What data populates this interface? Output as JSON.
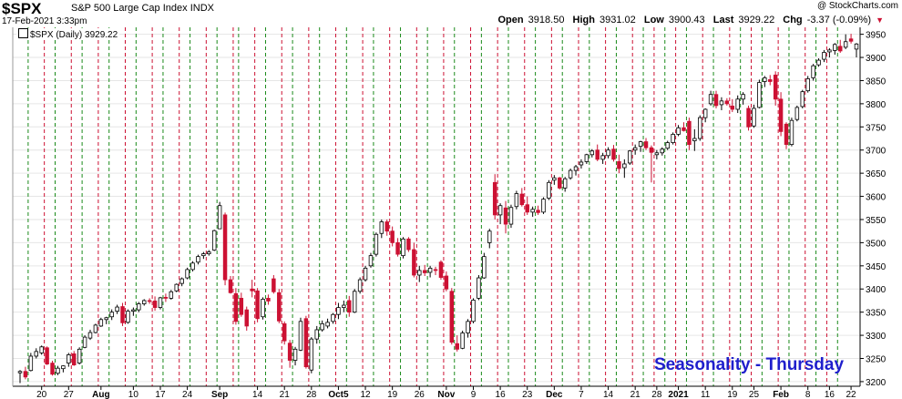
{
  "header": {
    "symbol": "$SPX",
    "name": "S&P 500 Large Cap Index",
    "exchange": "INDX",
    "datetime": "17-Feb-2021 3:33pm",
    "watermark": "@ StockCharts.com",
    "open_label": "Open",
    "open": "3918.50",
    "high_label": "High",
    "high": "3931.02",
    "low_label": "Low",
    "low": "3900.43",
    "last_label": "Last",
    "last": "3929.22",
    "chg_label": "Chg",
    "chg": "-3.37 (-0.09%)"
  },
  "legend": {
    "label": "$SPX (Daily) 3929.22"
  },
  "annotation": {
    "text": "Seasonality - Thursday"
  },
  "colors": {
    "up_fill": "#ffffff",
    "up_stroke": "#000000",
    "down": "#cc1133",
    "green_line": "#1a8a1a",
    "red_line": "#cc1133",
    "grid": "#e6e6e6",
    "text_blue": "#1f1fcc"
  },
  "chart_data": {
    "type": "candlestick",
    "ylim": [
      3190,
      3965
    ],
    "y_ticks": [
      3200,
      3250,
      3300,
      3350,
      3400,
      3450,
      3500,
      3550,
      3600,
      3650,
      3700,
      3750,
      3800,
      3850,
      3900,
      3950
    ],
    "x_ticks": [
      {
        "label": "20",
        "i": 4
      },
      {
        "label": "27",
        "i": 9
      },
      {
        "label": "Aug",
        "i": 15
      },
      {
        "label": "10",
        "i": 21
      },
      {
        "label": "17",
        "i": 26
      },
      {
        "label": "24",
        "i": 31
      },
      {
        "label": "Sep",
        "i": 37
      },
      {
        "label": "14",
        "i": 44
      },
      {
        "label": "21",
        "i": 49
      },
      {
        "label": "28",
        "i": 54
      },
      {
        "label": "Oct5",
        "i": 59
      },
      {
        "label": "12",
        "i": 64
      },
      {
        "label": "19",
        "i": 69
      },
      {
        "label": "26",
        "i": 74
      },
      {
        "label": "Nov",
        "i": 79
      },
      {
        "label": "9",
        "i": 84
      },
      {
        "label": "16",
        "i": 89
      },
      {
        "label": "23",
        "i": 94
      },
      {
        "label": "Dec",
        "i": 99
      },
      {
        "label": "7",
        "i": 104
      },
      {
        "label": "14",
        "i": 109
      },
      {
        "label": "21",
        "i": 114
      },
      {
        "label": "28",
        "i": 118
      },
      {
        "label": "2021",
        "i": 122
      },
      {
        "label": "11",
        "i": 127
      },
      {
        "label": "19",
        "i": 132
      },
      {
        "label": "25",
        "i": 136
      },
      {
        "label": "Feb",
        "i": 141
      },
      {
        "label": "8",
        "i": 146
      },
      {
        "label": "16",
        "i": 150
      },
      {
        "label": "22",
        "i": 154
      }
    ],
    "red_verticals": [
      4,
      9,
      14,
      19,
      24,
      29,
      34,
      39,
      43,
      48,
      53,
      58,
      63,
      68,
      73,
      78,
      83,
      88,
      93,
      98,
      103,
      108,
      113,
      117,
      121,
      126,
      131,
      135,
      140,
      145,
      149
    ],
    "green_verticals": [
      1,
      6,
      11,
      16,
      21,
      26,
      31,
      36,
      40,
      45,
      50,
      55,
      60,
      65,
      70,
      75,
      80,
      85,
      90,
      95,
      100,
      105,
      110,
      115,
      119,
      123,
      128,
      133,
      137,
      142,
      147,
      151
    ],
    "candles": [
      [
        3219,
        3225,
        3197,
        3222
      ],
      [
        3222,
        3232,
        3205,
        3210
      ],
      [
        3224,
        3262,
        3222,
        3255
      ],
      [
        3255,
        3272,
        3250,
        3265
      ],
      [
        3262,
        3278,
        3258,
        3275
      ],
      [
        3273,
        3276,
        3236,
        3238
      ],
      [
        3240,
        3245,
        3213,
        3216
      ],
      [
        3218,
        3234,
        3214,
        3229
      ],
      [
        3228,
        3235,
        3220,
        3234
      ],
      [
        3240,
        3262,
        3232,
        3258
      ],
      [
        3260,
        3266,
        3234,
        3236
      ],
      [
        3240,
        3274,
        3237,
        3270
      ],
      [
        3274,
        3300,
        3272,
        3296
      ],
      [
        3294,
        3312,
        3290,
        3306
      ],
      [
        3306,
        3325,
        3304,
        3322
      ],
      [
        3320,
        3338,
        3318,
        3334
      ],
      [
        3334,
        3340,
        3324,
        3338
      ],
      [
        3340,
        3356,
        3333,
        3350
      ],
      [
        3352,
        3366,
        3346,
        3361
      ],
      [
        3362,
        3370,
        3320,
        3327
      ],
      [
        3328,
        3356,
        3325,
        3352
      ],
      [
        3352,
        3360,
        3342,
        3355
      ],
      [
        3355,
        3372,
        3350,
        3368
      ],
      [
        3368,
        3378,
        3364,
        3375
      ],
      [
        3375,
        3380,
        3368,
        3374
      ],
      [
        3374,
        3384,
        3353,
        3360
      ],
      [
        3360,
        3383,
        3356,
        3381
      ],
      [
        3382,
        3390,
        3372,
        3380
      ],
      [
        3380,
        3398,
        3377,
        3394
      ],
      [
        3396,
        3412,
        3393,
        3410
      ],
      [
        3412,
        3425,
        3406,
        3422
      ],
      [
        3424,
        3446,
        3421,
        3442
      ],
      [
        3442,
        3460,
        3438,
        3456
      ],
      [
        3458,
        3474,
        3453,
        3470
      ],
      [
        3472,
        3480,
        3465,
        3476
      ],
      [
        3476,
        3484,
        3472,
        3480
      ],
      [
        3484,
        3528,
        3482,
        3526
      ],
      [
        3530,
        3588,
        3530,
        3580
      ],
      [
        3560,
        3565,
        3408,
        3420
      ],
      [
        3420,
        3428,
        3390,
        3392
      ],
      [
        3390,
        3402,
        3323,
        3330
      ],
      [
        3380,
        3392,
        3340,
        3345
      ],
      [
        3355,
        3362,
        3310,
        3320
      ],
      [
        3400,
        3420,
        3382,
        3396
      ],
      [
        3396,
        3402,
        3328,
        3336
      ],
      [
        3340,
        3382,
        3334,
        3378
      ],
      [
        3380,
        3388,
        3366,
        3374
      ],
      [
        3422,
        3430,
        3390,
        3394
      ],
      [
        3392,
        3400,
        3326,
        3331
      ],
      [
        3325,
        3330,
        3280,
        3288
      ],
      [
        3283,
        3290,
        3230,
        3246
      ],
      [
        3246,
        3275,
        3235,
        3270
      ],
      [
        3268,
        3338,
        3266,
        3330
      ],
      [
        3336,
        3342,
        3228,
        3232
      ],
      [
        3225,
        3296,
        3218,
        3292
      ],
      [
        3292,
        3320,
        3282,
        3312
      ],
      [
        3312,
        3332,
        3308,
        3325
      ],
      [
        3320,
        3336,
        3315,
        3328
      ],
      [
        3330,
        3348,
        3325,
        3345
      ],
      [
        3345,
        3370,
        3335,
        3360
      ],
      [
        3360,
        3375,
        3350,
        3365
      ],
      [
        3375,
        3385,
        3340,
        3350
      ],
      [
        3350,
        3400,
        3348,
        3395
      ],
      [
        3395,
        3425,
        3390,
        3420
      ],
      [
        3420,
        3450,
        3416,
        3445
      ],
      [
        3450,
        3478,
        3446,
        3472
      ],
      [
        3475,
        3522,
        3470,
        3518
      ],
      [
        3520,
        3550,
        3510,
        3545
      ],
      [
        3545,
        3550,
        3515,
        3525
      ],
      [
        3525,
        3535,
        3492,
        3500
      ],
      [
        3500,
        3510,
        3470,
        3475
      ],
      [
        3472,
        3512,
        3466,
        3508
      ],
      [
        3508,
        3512,
        3480,
        3485
      ],
      [
        3485,
        3500,
        3425,
        3430
      ],
      [
        3430,
        3450,
        3415,
        3440
      ],
      [
        3440,
        3452,
        3428,
        3435
      ],
      [
        3436,
        3450,
        3425,
        3445
      ],
      [
        3442,
        3448,
        3430,
        3440
      ],
      [
        3458,
        3462,
        3420,
        3425
      ],
      [
        3428,
        3438,
        3395,
        3400
      ],
      [
        3395,
        3402,
        3280,
        3285
      ],
      [
        3282,
        3300,
        3265,
        3270
      ],
      [
        3272,
        3310,
        3270,
        3305
      ],
      [
        3305,
        3335,
        3295,
        3330
      ],
      [
        3330,
        3380,
        3326,
        3376
      ],
      [
        3380,
        3430,
        3376,
        3424
      ],
      [
        3424,
        3478,
        3422,
        3470
      ],
      [
        3500,
        3530,
        3488,
        3525
      ],
      [
        3630,
        3648,
        3550,
        3560
      ],
      [
        3560,
        3585,
        3540,
        3580
      ],
      [
        3575,
        3590,
        3520,
        3540
      ],
      [
        3540,
        3582,
        3532,
        3576
      ],
      [
        3578,
        3612,
        3572,
        3606
      ],
      [
        3605,
        3618,
        3578,
        3582
      ],
      [
        3582,
        3600,
        3560,
        3566
      ],
      [
        3566,
        3578,
        3556,
        3572
      ],
      [
        3570,
        3580,
        3560,
        3565
      ],
      [
        3566,
        3598,
        3562,
        3594
      ],
      [
        3596,
        3635,
        3592,
        3630
      ],
      [
        3635,
        3646,
        3625,
        3640
      ],
      [
        3640,
        3642,
        3615,
        3618
      ],
      [
        3618,
        3642,
        3610,
        3638
      ],
      [
        3640,
        3660,
        3636,
        3656
      ],
      [
        3656,
        3668,
        3645,
        3664
      ],
      [
        3668,
        3680,
        3660,
        3674
      ],
      [
        3675,
        3692,
        3670,
        3690
      ],
      [
        3690,
        3702,
        3684,
        3698
      ],
      [
        3700,
        3712,
        3676,
        3680
      ],
      [
        3680,
        3694,
        3670,
        3688
      ],
      [
        3688,
        3706,
        3682,
        3700
      ],
      [
        3702,
        3711,
        3675,
        3680
      ],
      [
        3675,
        3690,
        3650,
        3660
      ],
      [
        3662,
        3680,
        3640,
        3670
      ],
      [
        3672,
        3700,
        3668,
        3698
      ],
      [
        3700,
        3712,
        3690,
        3705
      ],
      [
        3708,
        3720,
        3696,
        3718
      ],
      [
        3718,
        3726,
        3700,
        3705
      ],
      [
        3705,
        3710,
        3630,
        3695
      ],
      [
        3690,
        3700,
        3680,
        3694
      ],
      [
        3694,
        3706,
        3688,
        3702
      ],
      [
        3704,
        3720,
        3700,
        3716
      ],
      [
        3716,
        3738,
        3712,
        3734
      ],
      [
        3734,
        3754,
        3730,
        3748
      ],
      [
        3748,
        3760,
        3740,
        3742
      ],
      [
        3762,
        3770,
        3700,
        3712
      ],
      [
        3720,
        3745,
        3698,
        3725
      ],
      [
        3725,
        3775,
        3720,
        3770
      ],
      [
        3770,
        3790,
        3760,
        3788
      ],
      [
        3800,
        3828,
        3796,
        3820
      ],
      [
        3820,
        3828,
        3790,
        3796
      ],
      [
        3798,
        3814,
        3786,
        3806
      ],
      [
        3806,
        3812,
        3796,
        3800
      ],
      [
        3795,
        3810,
        3782,
        3788
      ],
      [
        3788,
        3818,
        3780,
        3810
      ],
      [
        3810,
        3825,
        3798,
        3820
      ],
      [
        3790,
        3796,
        3742,
        3750
      ],
      [
        3752,
        3798,
        3748,
        3790
      ],
      [
        3792,
        3852,
        3790,
        3846
      ],
      [
        3848,
        3860,
        3836,
        3856
      ],
      [
        3852,
        3862,
        3840,
        3848
      ],
      [
        3862,
        3870,
        3796,
        3810
      ],
      [
        3810,
        3825,
        3730,
        3740
      ],
      [
        3756,
        3760,
        3702,
        3712
      ],
      [
        3712,
        3770,
        3708,
        3764
      ],
      [
        3766,
        3796,
        3762,
        3792
      ],
      [
        3794,
        3830,
        3790,
        3826
      ],
      [
        3828,
        3860,
        3824,
        3854
      ],
      [
        3856,
        3886,
        3850,
        3882
      ],
      [
        3884,
        3898,
        3880,
        3894
      ],
      [
        3896,
        3916,
        3890,
        3911
      ],
      [
        3912,
        3920,
        3900,
        3916
      ],
      [
        3915,
        3931,
        3906,
        3928
      ],
      [
        3924,
        3938,
        3910,
        3914
      ],
      [
        3922,
        3950,
        3918,
        3934
      ],
      [
        3940,
        3951,
        3930,
        3935
      ],
      [
        3918,
        3931,
        3900,
        3929
      ]
    ]
  }
}
